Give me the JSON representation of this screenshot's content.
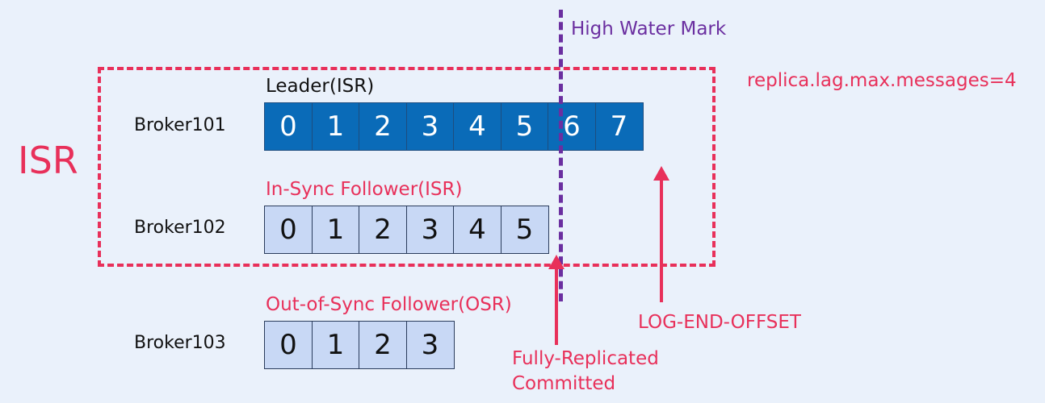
{
  "isr_group_label": "ISR",
  "high_water_mark_label": "High Water Mark",
  "config_label": "replica.lag.max.messages=4",
  "log_end_offset_label": "LOG-END-OFFSET",
  "committed_label_line1": "Fully-Replicated",
  "committed_label_line2": "Committed",
  "brokers": [
    {
      "name": "Broker101",
      "role": "Leader(ISR)",
      "offsets": [
        "0",
        "1",
        "2",
        "3",
        "4",
        "5",
        "6",
        "7"
      ]
    },
    {
      "name": "Broker102",
      "role": "In-Sync Follower(ISR)",
      "offsets": [
        "0",
        "1",
        "2",
        "3",
        "4",
        "5"
      ]
    },
    {
      "name": "Broker103",
      "role": "Out-of-Sync Follower(OSR)",
      "offsets": [
        "0",
        "1",
        "2",
        "3"
      ]
    }
  ],
  "colors": {
    "accent_red": "#e8305a",
    "hwm_purple": "#6b2fa0",
    "leader_cell": "#0a6bb8",
    "follower_cell": "#c8d8f5",
    "background": "#eaf1fb"
  }
}
